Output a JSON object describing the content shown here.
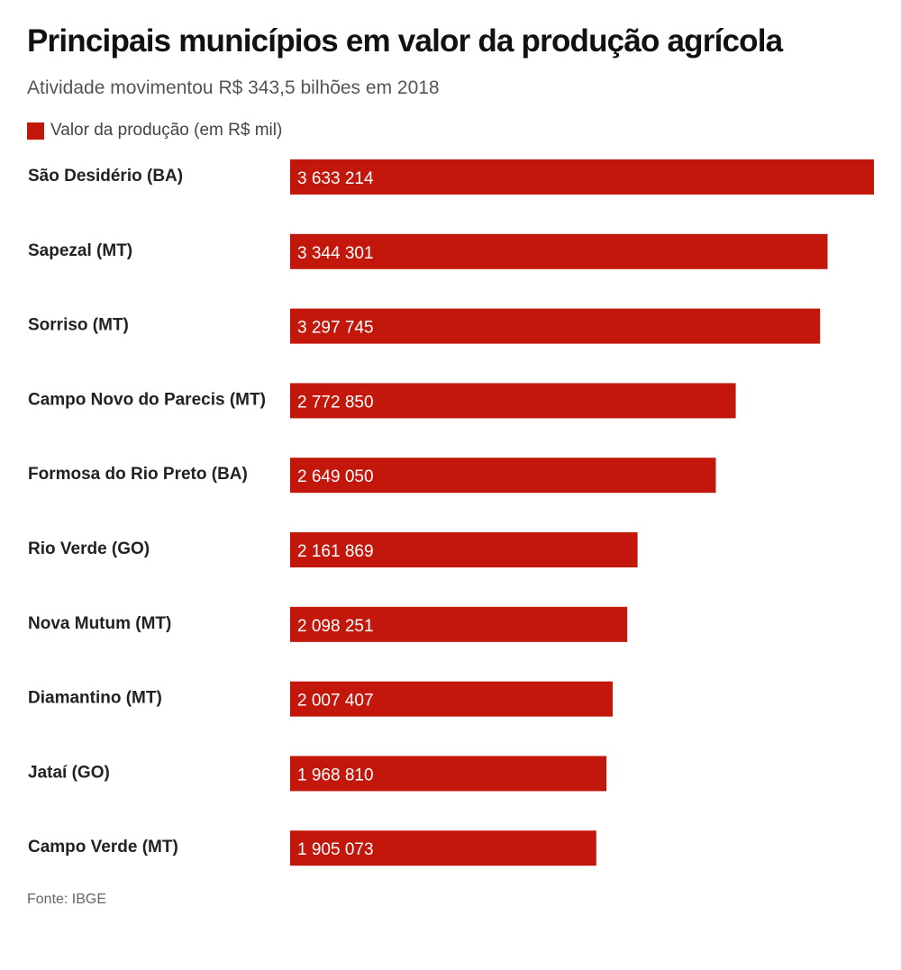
{
  "header": {
    "title": "Principais municípios em valor da produção agrícola",
    "subtitle": "Atividade movimentou R$ 343,5 bilhões em 2018"
  },
  "legend": {
    "label": "Valor da produção (em R$ mil)",
    "color": "#c4170c"
  },
  "footer": {
    "source": "Fonte: IBGE"
  },
  "chart_data": {
    "type": "bar",
    "orientation": "horizontal",
    "categories": [
      "São Desidério (BA)",
      "Sapezal (MT)",
      "Sorriso (MT)",
      "Campo Novo do Parecis (MT)",
      "Formosa do Rio Preto (BA)",
      "Rio Verde (GO)",
      "Nova Mutum (MT)",
      "Diamantino (MT)",
      "Jataí (GO)",
      "Campo Verde (MT)"
    ],
    "series": [
      {
        "name": "Valor da produção (em R$ mil)",
        "values": [
          3633214,
          3344301,
          3297745,
          2772850,
          2649050,
          2161869,
          2098251,
          2007407,
          1968810,
          1905073
        ],
        "value_labels": [
          "3 633 214",
          "3 344 301",
          "3 297 745",
          "2 772 850",
          "2 649 050",
          "2 161 869",
          "2 098 251",
          "2 007 407",
          "1 968 810",
          "1 905 073"
        ],
        "color": "#c4170c"
      }
    ],
    "title": "Principais municípios em valor da produção agrícola",
    "subtitle": "Atividade movimentou R$ 343,5 bilhões em 2018",
    "xlabel": "",
    "ylabel": "",
    "xlim": [
      0,
      3633214
    ],
    "grid": false,
    "legend_position": "top-left"
  }
}
